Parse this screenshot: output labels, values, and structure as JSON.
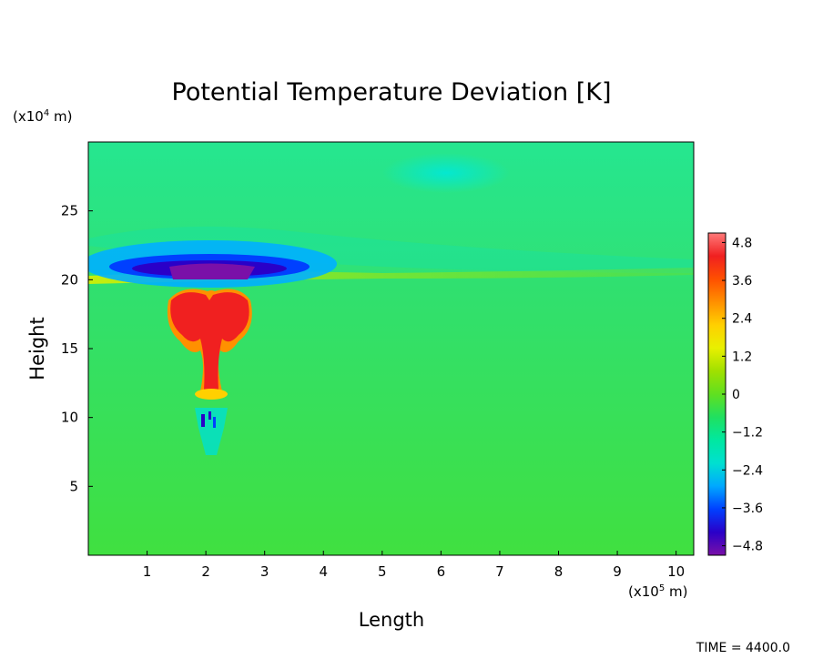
{
  "chart_data": {
    "type": "heatmap",
    "title": "Potential Temperature Deviation [K]",
    "xlabel": "Length",
    "ylabel": "Height",
    "x_unit": "(x10",
    "x_unit_exp": "5",
    "x_unit_tail": " m)",
    "y_unit": "(x10",
    "y_unit_exp": "4",
    "y_unit_tail": " m)",
    "xlim": [
      0,
      10.3
    ],
    "ylim": [
      0,
      30
    ],
    "x_ticks": [
      "1",
      "2",
      "3",
      "4",
      "5",
      "6",
      "7",
      "8",
      "9",
      "10"
    ],
    "y_ticks": [
      "5",
      "10",
      "15",
      "20",
      "25"
    ],
    "colorbar": {
      "range": [
        -5.1,
        5.1
      ],
      "ticks": [
        "4.8",
        "3.6",
        "2.4",
        "1.2",
        "0",
        "−1.2",
        "−2.4",
        "−3.6",
        "−4.8"
      ],
      "tick_values": [
        4.8,
        3.6,
        2.4,
        1.2,
        0,
        -1.2,
        -2.4,
        -3.6,
        -4.8
      ],
      "colors_low_to_high": [
        "#7a10a8",
        "#2a00c8",
        "#0040ff",
        "#00a8ff",
        "#00e0d0",
        "#00e8a0",
        "#20e060",
        "#60e020",
        "#a0e000",
        "#e8f000",
        "#ffd000",
        "#ff9000",
        "#ff5000",
        "#f02020",
        "#ff7a7a"
      ]
    },
    "features": [
      {
        "name": "tropopause cold anomaly",
        "x": [
          1.4,
          2.7
        ],
        "y": [
          19.8,
          21.0
        ],
        "value": -5.0
      },
      {
        "name": "warm plume cap",
        "x": [
          1.35,
          2.7
        ],
        "y": [
          15.5,
          19.2
        ],
        "value": 4.2
      },
      {
        "name": "plume stem",
        "x": [
          1.9,
          2.2
        ],
        "y": [
          11.5,
          16.0
        ],
        "value": 3.8
      },
      {
        "name": "cold core below plume",
        "x": [
          1.75,
          2.2
        ],
        "y": [
          7.0,
          10.5
        ],
        "value": -2.5
      }
    ],
    "background_value": 0.2
  },
  "footer": {
    "time_label": "TIME = 4400.0"
  }
}
